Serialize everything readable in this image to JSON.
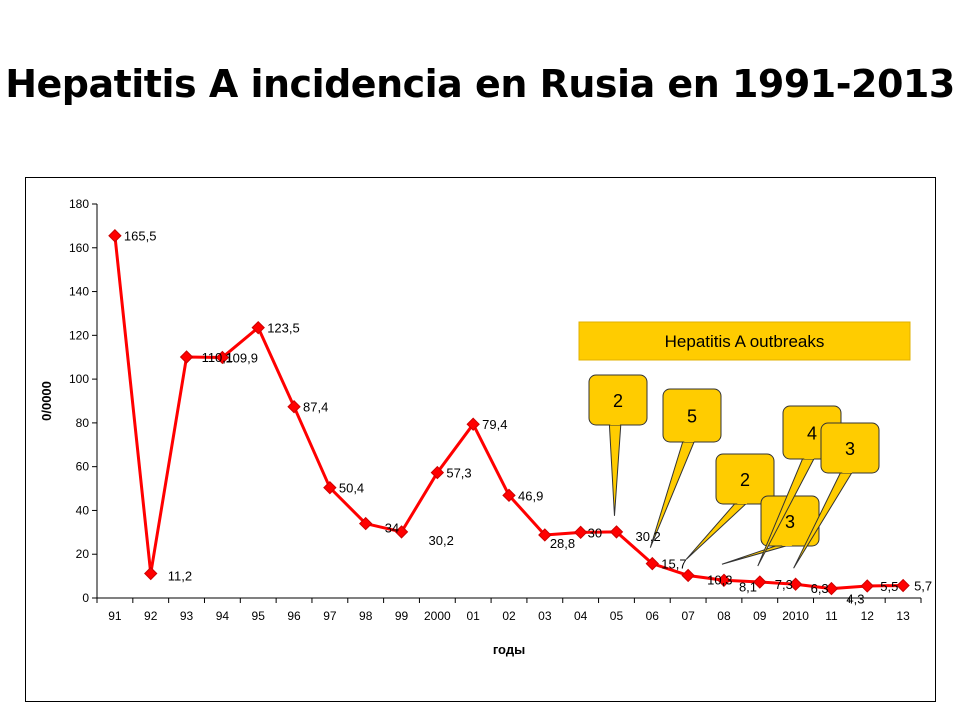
{
  "title": "Hepatitis A incidencia en Rusia en 1991-2013",
  "chart_data": {
    "type": "line",
    "title": "",
    "xlabel": "годы",
    "ylabel": "0/0000",
    "ylim": [
      0,
      180
    ],
    "yticks": [
      0,
      20,
      40,
      60,
      80,
      100,
      120,
      140,
      160,
      180
    ],
    "grid": false,
    "categories": [
      "91",
      "92",
      "93",
      "94",
      "95",
      "96",
      "97",
      "98",
      "99",
      "2000",
      "01",
      "02",
      "03",
      "04",
      "05",
      "06",
      "07",
      "08",
      "09",
      "2010",
      "11",
      "12",
      "13"
    ],
    "series": [
      {
        "values": [
          165.5,
          11.2,
          110.1,
          109.9,
          123.5,
          87.4,
          50.4,
          34,
          30.2,
          57.3,
          79.4,
          46.9,
          28.8,
          30,
          30.2,
          15.7,
          10.3,
          8.1,
          7.3,
          6.3,
          4.3,
          5.5,
          5.7
        ],
        "labels": [
          "165,5",
          "11,2",
          "110,1",
          "109,9",
          "123,5",
          "87,4",
          "50,4",
          "34",
          "30,2",
          "57,3",
          "79,4",
          "46,9",
          "28,8",
          "30",
          "30,2",
          "15,7",
          "10,3",
          "8,1",
          "7,3",
          "6,3",
          "4,3",
          "5,5",
          "5,7"
        ],
        "color": "#ff0000"
      }
    ],
    "annotation_box": {
      "text": "Hepatitis A outbreaks",
      "color": "#ffcc00"
    },
    "outbreak_callouts": [
      {
        "text": "2",
        "points_to": "05"
      },
      {
        "text": "5",
        "points_to": "06"
      },
      {
        "text": "2",
        "points_to": "07"
      },
      {
        "text": "3",
        "points_to": "08"
      },
      {
        "text": "4",
        "points_to": "09"
      },
      {
        "text": "3",
        "points_to": "2010"
      }
    ]
  }
}
